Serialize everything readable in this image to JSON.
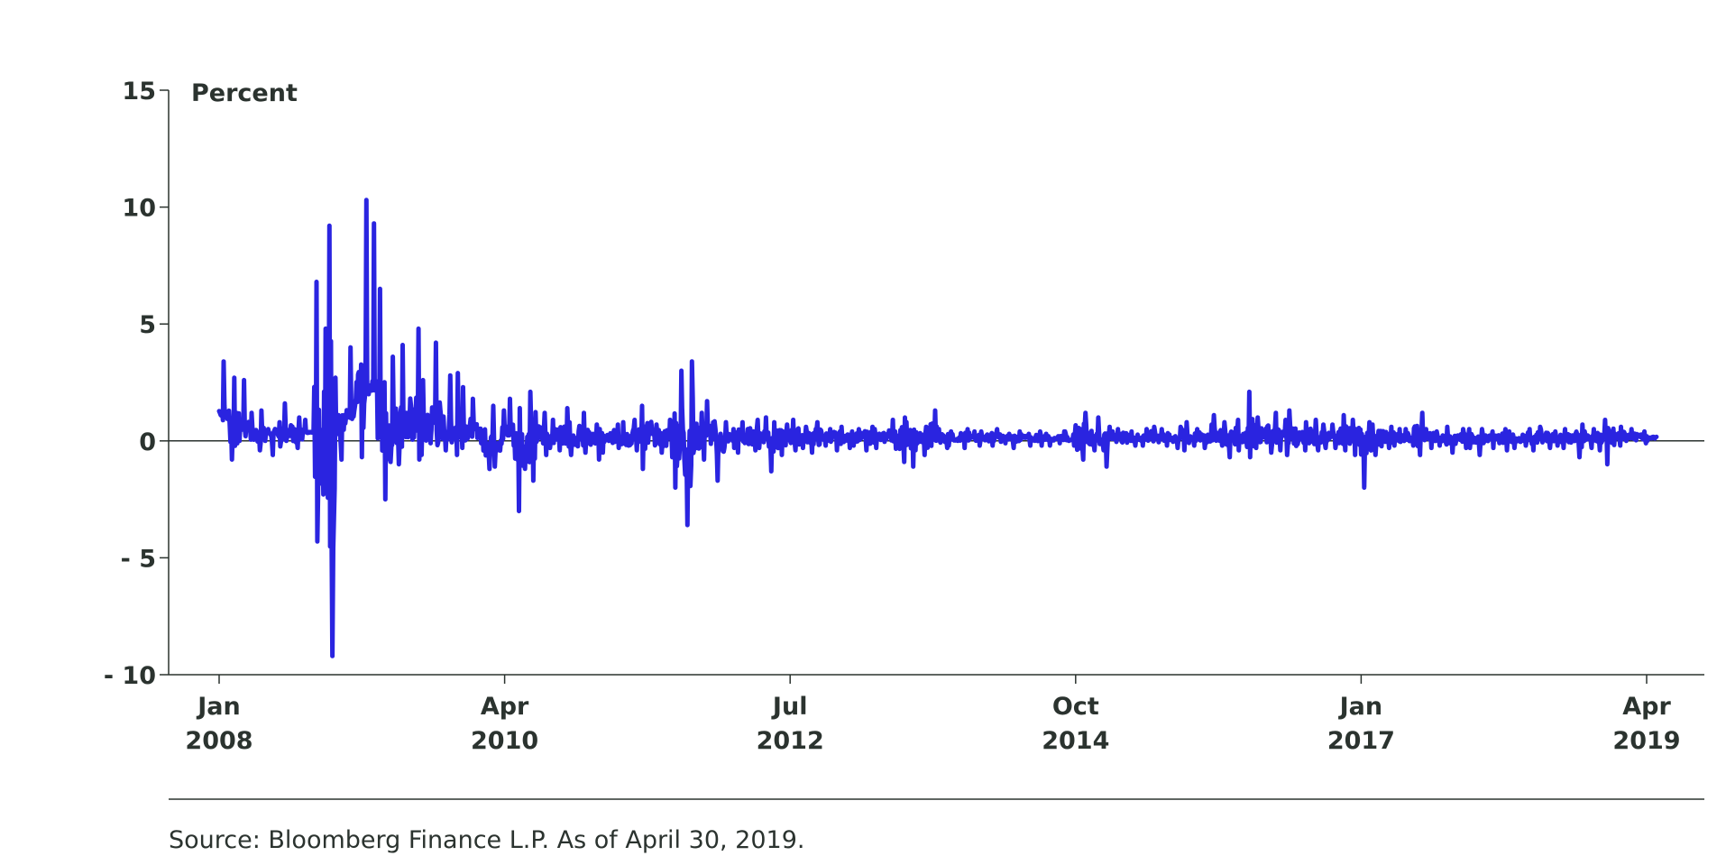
{
  "chart_data": {
    "type": "line",
    "ylabel": "Percent",
    "ylim": [
      -10,
      15
    ],
    "xlim": [
      "2008-01",
      "2019-04"
    ],
    "yticks": [
      15,
      10,
      5,
      0,
      -5,
      -10
    ],
    "ytick_labels": [
      "15",
      "10",
      "5",
      "0",
      "- 5",
      "- 10"
    ],
    "xticks": [
      {
        "date": "2008-01",
        "line1": "Jan",
        "line2": "2008"
      },
      {
        "date": "2010-04",
        "line1": "Apr",
        "line2": "2010"
      },
      {
        "date": "2012-07",
        "line1": "Jul",
        "line2": "2012"
      },
      {
        "date": "2014-10",
        "line1": "Oct",
        "line2": "2014"
      },
      {
        "date": "2017-01",
        "line1": "Jan",
        "line2": "2017"
      },
      {
        "date": "2019-04",
        "line1": "Apr",
        "line2": "2019"
      }
    ],
    "grid": false,
    "series": [
      {
        "color": "#2a24e0",
        "x": [
          "2008-01",
          "2008-02",
          "2008-03",
          "2008-04",
          "2008-05",
          "2008-06",
          "2008-07",
          "2008-08",
          "2008-09",
          "2008-10",
          "2008-11",
          "2008-12",
          "2009-01",
          "2009-02",
          "2009-03",
          "2009-04",
          "2009-05",
          "2009-06",
          "2009-07",
          "2009-08",
          "2009-09",
          "2009-10",
          "2009-11",
          "2009-12",
          "2010-01",
          "2010-02",
          "2010-03",
          "2010-04",
          "2010-05",
          "2010-06",
          "2010-07",
          "2010-08",
          "2010-09",
          "2010-10",
          "2010-11",
          "2010-12",
          "2011-01",
          "2011-02",
          "2011-03",
          "2011-04",
          "2011-05",
          "2011-06",
          "2011-07",
          "2011-08",
          "2011-09",
          "2011-10",
          "2011-11",
          "2011-12",
          "2012-01",
          "2012-02",
          "2012-03",
          "2012-04",
          "2012-05",
          "2012-06",
          "2012-07",
          "2012-08",
          "2012-09",
          "2012-10",
          "2012-11",
          "2012-12",
          "2013-01",
          "2013-02",
          "2013-03",
          "2013-04",
          "2013-05",
          "2013-06",
          "2013-07",
          "2013-08",
          "2013-09",
          "2013-10",
          "2013-11",
          "2013-12",
          "2014-01",
          "2014-02",
          "2014-03",
          "2014-04",
          "2014-05",
          "2014-06",
          "2014-07",
          "2014-08",
          "2014-09",
          "2014-10",
          "2014-11",
          "2014-12",
          "2015-01",
          "2015-02",
          "2015-03",
          "2015-04",
          "2015-05",
          "2015-06",
          "2015-07",
          "2015-08",
          "2015-09",
          "2015-10",
          "2015-11",
          "2015-12",
          "2016-01",
          "2016-02",
          "2016-03",
          "2016-04",
          "2016-05",
          "2016-06",
          "2016-07",
          "2016-08",
          "2016-09",
          "2016-10",
          "2016-11",
          "2016-12",
          "2017-01",
          "2017-02",
          "2017-03",
          "2017-04",
          "2017-05",
          "2017-06",
          "2017-07",
          "2017-08",
          "2017-09",
          "2017-10",
          "2017-11",
          "2017-12",
          "2018-01",
          "2018-02",
          "2018-03",
          "2018-04",
          "2018-05",
          "2018-06",
          "2018-07",
          "2018-08",
          "2018-09",
          "2018-10",
          "2018-11",
          "2018-12",
          "2019-01",
          "2019-02",
          "2019-03",
          "2019-04"
        ],
        "low": [
          1.5,
          -0.8,
          0.2,
          -0.4,
          0.0,
          -0.6,
          0.0,
          -0.3,
          0.4,
          -4.3,
          -9.2,
          -0.8,
          1.8,
          -0.7,
          2.0,
          -2.5,
          -0.9,
          -1.0,
          -0.8,
          -0.6,
          -1.1,
          -0.4,
          -0.6,
          -0.3,
          -0.1,
          -1.2,
          -1.1,
          -0.2,
          -3.0,
          -1.7,
          -0.6,
          -0.3,
          -0.4,
          -0.6,
          -0.5,
          -0.8,
          -0.5,
          -0.3,
          -0.6,
          -0.4,
          -1.2,
          -0.5,
          -0.7,
          -2.0,
          -3.6,
          -0.8,
          -0.6,
          -1.7,
          -0.3,
          -0.5,
          -0.4,
          -0.3,
          -1.3,
          -0.6,
          -0.4,
          -0.3,
          -0.5,
          -0.2,
          -0.4,
          -0.3,
          -0.2,
          -0.4,
          -0.3,
          -0.2,
          -0.9,
          -1.1,
          -0.6,
          -0.9,
          -0.3,
          -0.2,
          -0.3,
          -0.2,
          -0.2,
          -0.2,
          -0.1,
          -0.3,
          -0.2,
          -0.2,
          -0.2,
          -0.1,
          -0.2,
          -0.8,
          -0.4,
          -1.1,
          -0.3,
          -0.3,
          -0.2,
          -0.2,
          -0.3,
          -0.2,
          -0.3,
          -0.4,
          -0.2,
          -0.3,
          -0.2,
          -0.7,
          -0.4,
          -0.7,
          -0.3,
          -0.5,
          -0.4,
          -0.6,
          -0.4,
          -0.4,
          -0.3,
          -0.3,
          -0.4,
          -0.6,
          -2.0,
          -0.6,
          -0.3,
          -0.2,
          -0.2,
          -0.6,
          -0.3,
          -0.2,
          -0.5,
          -0.3,
          -0.3,
          -0.6,
          -0.3,
          -0.4,
          -0.3,
          -0.2,
          -0.4,
          -0.3,
          -0.2,
          -0.3,
          -0.7,
          -0.3,
          -0.4,
          -1.0,
          -0.2,
          0.0,
          -0.1,
          0.0
        ],
        "high": [
          3.4,
          2.7,
          2.6,
          1.2,
          1.3,
          0.8,
          1.6,
          1.0,
          0.9,
          6.8,
          9.2,
          2.7,
          4.0,
          10.3,
          9.3,
          6.5,
          3.6,
          4.1,
          4.8,
          2.6,
          4.2,
          2.8,
          2.9,
          2.3,
          1.8,
          1.5,
          1.3,
          1.8,
          1.4,
          2.1,
          1.2,
          0.9,
          1.4,
          0.8,
          1.2,
          0.7,
          0.5,
          0.7,
          0.8,
          0.9,
          1.5,
          0.7,
          0.9,
          3.0,
          3.4,
          1.2,
          1.7,
          0.8,
          0.5,
          0.8,
          0.9,
          1.0,
          0.8,
          0.7,
          0.9,
          0.6,
          0.8,
          0.5,
          0.6,
          0.4,
          0.5,
          0.6,
          0.5,
          0.9,
          1.0,
          0.8,
          0.6,
          1.3,
          0.5,
          0.4,
          0.5,
          0.4,
          0.4,
          0.5,
          0.3,
          0.4,
          0.3,
          0.4,
          0.3,
          0.4,
          0.4,
          1.2,
          0.7,
          1.0,
          0.6,
          0.5,
          0.4,
          0.5,
          0.6,
          0.5,
          0.6,
          0.8,
          0.5,
          0.7,
          1.1,
          0.8,
          0.9,
          2.1,
          1.0,
          1.2,
          0.9,
          1.3,
          0.8,
          0.9,
          0.7,
          0.7,
          1.1,
          0.9,
          0.8,
          0.7,
          0.6,
          0.5,
          0.5,
          1.2,
          0.5,
          0.4,
          0.6,
          0.5,
          0.5,
          0.5,
          0.4,
          0.5,
          0.4,
          0.5,
          0.6,
          0.5,
          0.4,
          0.5,
          0.7,
          0.4,
          0.5,
          0.9,
          0.6,
          0.5,
          0.4,
          0.2
        ]
      }
    ],
    "source_note": "Source: Bloomberg Finance L.P. As of April 30, 2019."
  }
}
